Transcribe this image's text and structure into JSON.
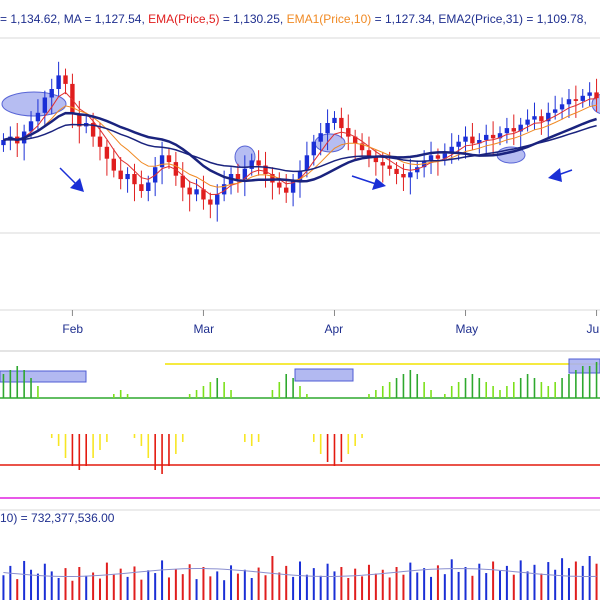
{
  "header": {
    "price": "= 1,134.62,",
    "ma_label": "MA",
    "ma_value": "= 1,127.54,",
    "ema_label": "EMA(Price,5)",
    "ema_value": "= 1,130.25,",
    "ema1_label": "EMA1(Price,10)",
    "ema1_value": "= 1,127.34,",
    "ema2_label": "EMA2(Price,31)",
    "ema2_value": "= 1,109.78,"
  },
  "volume_label": "10) = 732,377,536.00",
  "colors": {
    "up": "#1a2fd6",
    "down": "#e01e1e",
    "ma": "#1a237e",
    "ema": "#e03030",
    "ema1": "#f08a24",
    "text_dark": "#1f2f8f",
    "osc_up": "#2ea82e",
    "osc_green": "#7be01a",
    "osc_yellow": "#f7e623",
    "osc_red": "#e31a0f",
    "highlight": "#aab2f0",
    "line_green": "#2ea82e",
    "line_red": "#e31a0f",
    "line_magenta": "#e020e0",
    "line_yellow": "#f2e400"
  },
  "chart_data": {
    "type": "candlestick",
    "months": [
      "Feb",
      "Mar",
      "Apr",
      "May",
      "Ju"
    ],
    "month_index": [
      10,
      29,
      48,
      67,
      86
    ],
    "last_values": {
      "price": 1134.62,
      "ma": 1127.54,
      "ema5": 1130.25,
      "ema10": 1127.34,
      "ema31": 1109.78,
      "volume": 732377536.0
    },
    "close": [
      1110,
      1112,
      1108,
      1115,
      1121,
      1126,
      1135,
      1140,
      1148,
      1143,
      1125,
      1118,
      1120,
      1112,
      1106,
      1099,
      1092,
      1087,
      1090,
      1084,
      1080,
      1085,
      1094,
      1101,
      1097,
      1089,
      1082,
      1078,
      1081,
      1075,
      1072,
      1078,
      1084,
      1090,
      1087,
      1093,
      1098,
      1095,
      1090,
      1085,
      1082,
      1079,
      1086,
      1092,
      1101,
      1109,
      1114,
      1120,
      1123,
      1117,
      1112,
      1108,
      1104,
      1100,
      1097,
      1095,
      1093,
      1090,
      1088,
      1091,
      1094,
      1098,
      1101,
      1099,
      1102,
      1106,
      1109,
      1112,
      1108,
      1110,
      1113,
      1111,
      1114,
      1117,
      1115,
      1119,
      1122,
      1124,
      1121,
      1126,
      1128,
      1131,
      1134,
      1133,
      1136,
      1138,
      1134.62
    ],
    "oscillator": [
      6,
      7,
      8,
      7,
      5,
      3,
      0,
      -1,
      -3,
      -6,
      -8,
      -9,
      -8,
      -6,
      -4,
      -2,
      1,
      2,
      1,
      -1,
      -3,
      -6,
      -9,
      -10,
      -8,
      -5,
      -2,
      1,
      2,
      3,
      4,
      5,
      4,
      2,
      0,
      -2,
      -3,
      -2,
      0,
      2,
      4,
      6,
      5,
      3,
      1,
      -2,
      -5,
      -7,
      -8,
      -7,
      -5,
      -3,
      -1,
      1,
      2,
      3,
      4,
      5,
      6,
      7,
      6,
      4,
      2,
      0,
      1,
      3,
      4,
      5,
      6,
      5,
      4,
      3,
      2,
      3,
      4,
      5,
      6,
      5,
      4,
      3,
      4,
      5,
      6,
      7,
      8,
      8,
      9
    ],
    "volume": [
      0.45,
      0.62,
      0.38,
      0.71,
      0.55,
      0.48,
      0.66,
      0.52,
      0.4,
      0.58,
      0.35,
      0.6,
      0.44,
      0.5,
      0.39,
      0.68,
      0.46,
      0.57,
      0.42,
      0.61,
      0.37,
      0.54,
      0.49,
      0.72,
      0.41,
      0.56,
      0.47,
      0.65,
      0.38,
      0.6,
      0.43,
      0.52,
      0.36,
      0.63,
      0.48,
      0.55,
      0.4,
      0.59,
      0.45,
      0.8,
      0.5,
      0.62,
      0.42,
      0.7,
      0.46,
      0.58,
      0.44,
      0.66,
      0.52,
      0.6,
      0.4,
      0.57,
      0.43,
      0.64,
      0.48,
      0.55,
      0.41,
      0.6,
      0.46,
      0.68,
      0.5,
      0.58,
      0.42,
      0.63,
      0.47,
      0.74,
      0.51,
      0.6,
      0.44,
      0.66,
      0.49,
      0.7,
      0.53,
      0.62,
      0.46,
      0.72,
      0.52,
      0.64,
      0.48,
      0.69,
      0.55,
      0.76,
      0.58,
      0.7,
      0.62,
      0.8,
      0.66
    ]
  }
}
